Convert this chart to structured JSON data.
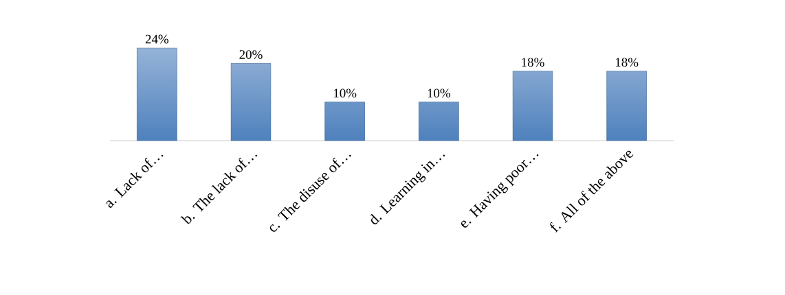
{
  "chart_data": {
    "type": "bar",
    "categories": [
      "a. Lack of…",
      "b. The lack of…",
      "c. The disuse of…",
      "d. Learning in…",
      "e. Having poor…",
      "f. All of the above"
    ],
    "values": [
      24,
      20,
      10,
      10,
      18,
      18
    ],
    "value_labels": [
      "24%",
      "20%",
      "10%",
      "10%",
      "18%",
      "18%"
    ],
    "color": "#4f81bd"
  }
}
